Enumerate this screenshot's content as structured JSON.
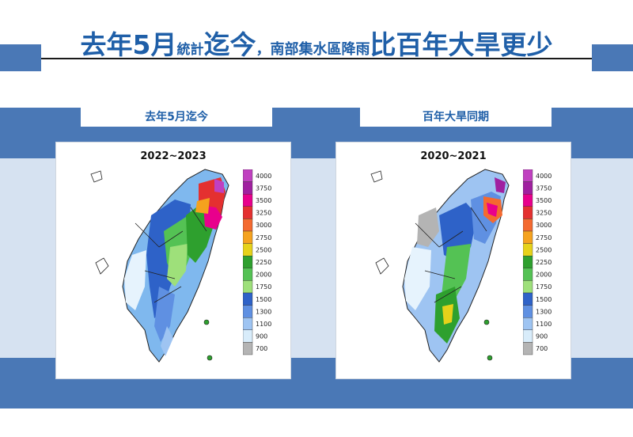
{
  "title": {
    "part1": "去年5月",
    "part2": "統計",
    "part3": "迄今",
    "part4": "，南部集水區降雨",
    "part5": "比百年大旱更少"
  },
  "panels": [
    {
      "label": "去年5月迄今",
      "period": "2022~2023"
    },
    {
      "label": "百年大旱同期",
      "period": "2020~2021"
    }
  ],
  "legend": {
    "levels": [
      "4000",
      "3750",
      "3500",
      "3250",
      "3000",
      "2750",
      "2500",
      "2250",
      "2000",
      "1750",
      "1500",
      "1300",
      "1100",
      "900",
      "700"
    ],
    "colors": [
      "#c040c0",
      "#a020a0",
      "#e8008c",
      "#e43030",
      "#f46a30",
      "#f5a21e",
      "#e6d21a",
      "#2ea02e",
      "#54c254",
      "#9ee07a",
      "#2e62c8",
      "#5f90e2",
      "#9ec4f2",
      "#d8ecfa",
      "#b4b4b4"
    ]
  }
}
